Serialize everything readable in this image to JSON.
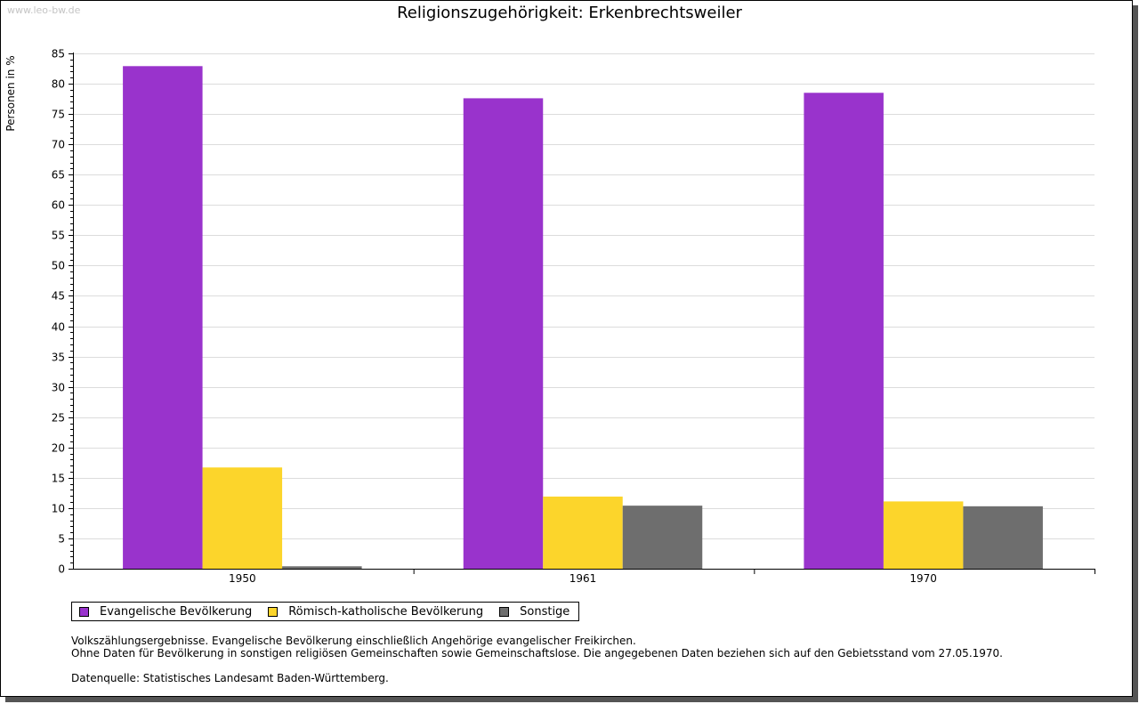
{
  "watermark": "www.leo-bw.de",
  "notes": {
    "line1": "Volkszählungsergebnisse. Evangelische Bevölkerung einschließlich Angehörige evangelischer Freikirchen.",
    "line2": "Ohne Daten für Bevölkerung in sonstigen religiösen Gemeinschaften sowie Gemeinschaftslose. Die angegebenen Daten beziehen sich auf den Gebietsstand vom 27.05.1970.",
    "source": "Datenquelle: Statistisches Landesamt Baden-Württemberg."
  },
  "chart_data": {
    "type": "bar",
    "title": "Religionszugehörigkeit: Erkenbrechtsweiler",
    "xlabel": "",
    "ylabel": "Personen in %",
    "categories": [
      "1950",
      "1961",
      "1970"
    ],
    "series": [
      {
        "name": "Evangelische Bevölkerung",
        "color": "#9933cc",
        "values": [
          82.9,
          77.6,
          78.5
        ]
      },
      {
        "name": "Römisch-katholische Bevölkerung",
        "color": "#fcd52b",
        "values": [
          16.7,
          11.9,
          11.1
        ]
      },
      {
        "name": "Sonstige",
        "color": "#6e6e6e",
        "values": [
          0.4,
          10.4,
          10.3
        ]
      }
    ],
    "ylim": [
      0,
      85
    ],
    "yticks": [
      0,
      5,
      10,
      15,
      20,
      25,
      30,
      35,
      40,
      45,
      50,
      55,
      60,
      65,
      70,
      75,
      80,
      85
    ],
    "grid": true,
    "legend_position": "bottom-left"
  }
}
